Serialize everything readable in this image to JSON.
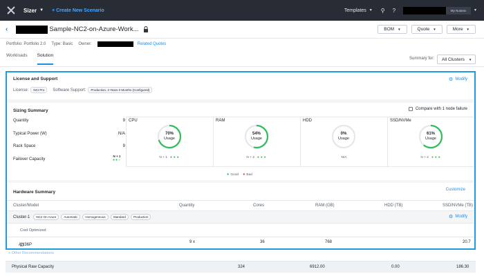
{
  "topnav": {
    "app_name": "Sizer",
    "create_link": "+ Create New Scenario",
    "templates": "Templates",
    "user_label": "My Nutanix"
  },
  "header": {
    "title": "Sample-NC2-on-Azure-Work...",
    "bom": "BOM",
    "quote": "Quote",
    "more": "More"
  },
  "meta": {
    "portfolio": "Portfolio: Portfolio 2.0",
    "type": "Type: Basic",
    "owner": "Owner:",
    "related": "Related Quotes"
  },
  "tabs": [
    "Workloads",
    "Solution"
  ],
  "summary_for": {
    "label": "Summary for:",
    "value": "All Clusters"
  },
  "license": {
    "title": "License and Support",
    "modify": "Modify",
    "license_label": "License:",
    "license_value": "NCI Pro",
    "support_label": "Software Support:",
    "support_value": "Production, 3 Years 0 Months (Configured)"
  },
  "sizing": {
    "title": "Sizing Summary",
    "compare": "Compare with 1 node failure",
    "stats": [
      {
        "label": "Quantity",
        "value": "9"
      },
      {
        "label": "Typical Power (W)",
        "value": "N/A"
      },
      {
        "label": "Rack Space",
        "value": "9"
      },
      {
        "label": "Failover Capacity",
        "value": "N + 1"
      }
    ],
    "resources": [
      {
        "name": "CPU",
        "pct_text": "70%",
        "usage": "Usage",
        "pct": 70,
        "footer": "N + 1"
      },
      {
        "name": "RAM",
        "pct_text": "54%",
        "usage": "Usage",
        "pct": 54,
        "footer": "N + 2"
      },
      {
        "name": "HDD",
        "pct_text": "0%",
        "usage": "Usage",
        "pct": 0,
        "footer": "N/A"
      },
      {
        "name": "SSD/NVMe",
        "pct_text": "61%",
        "usage": "Usage",
        "pct": 61,
        "footer": "N + 2"
      }
    ],
    "legend_good": "Good",
    "legend_bad": "Bad",
    "good_color": "#2ebd59",
    "bad_color": "#e5484d"
  },
  "hardware": {
    "title": "Hardware Summary",
    "customize": "Customize",
    "columns": [
      "Cluster/Model",
      "Quantity",
      "Cores",
      "RAM (GB)",
      "HDD (TB)",
      "SSD/NVMe (TB)"
    ],
    "cluster_name": "Cluster-1",
    "cluster_tags": [
      "NC2 On Azure",
      "Automatic",
      "Homogeneous",
      "Standard",
      "Production"
    ],
    "modify": "Modify",
    "cost_label": "Cost Optimized",
    "row": {
      "model": "AN36P",
      "quantity": "9 x",
      "cores": "36",
      "ram": "768",
      "ssd": "20.7"
    }
  },
  "other_recommendations": "+ Other Recommendations",
  "raw_capacity": {
    "label": "Physical Raw Capacity",
    "cores": "324",
    "ram": "6912.00",
    "hdd": "0.00",
    "ssd": "186.30"
  },
  "accent": "#1b8ee6"
}
